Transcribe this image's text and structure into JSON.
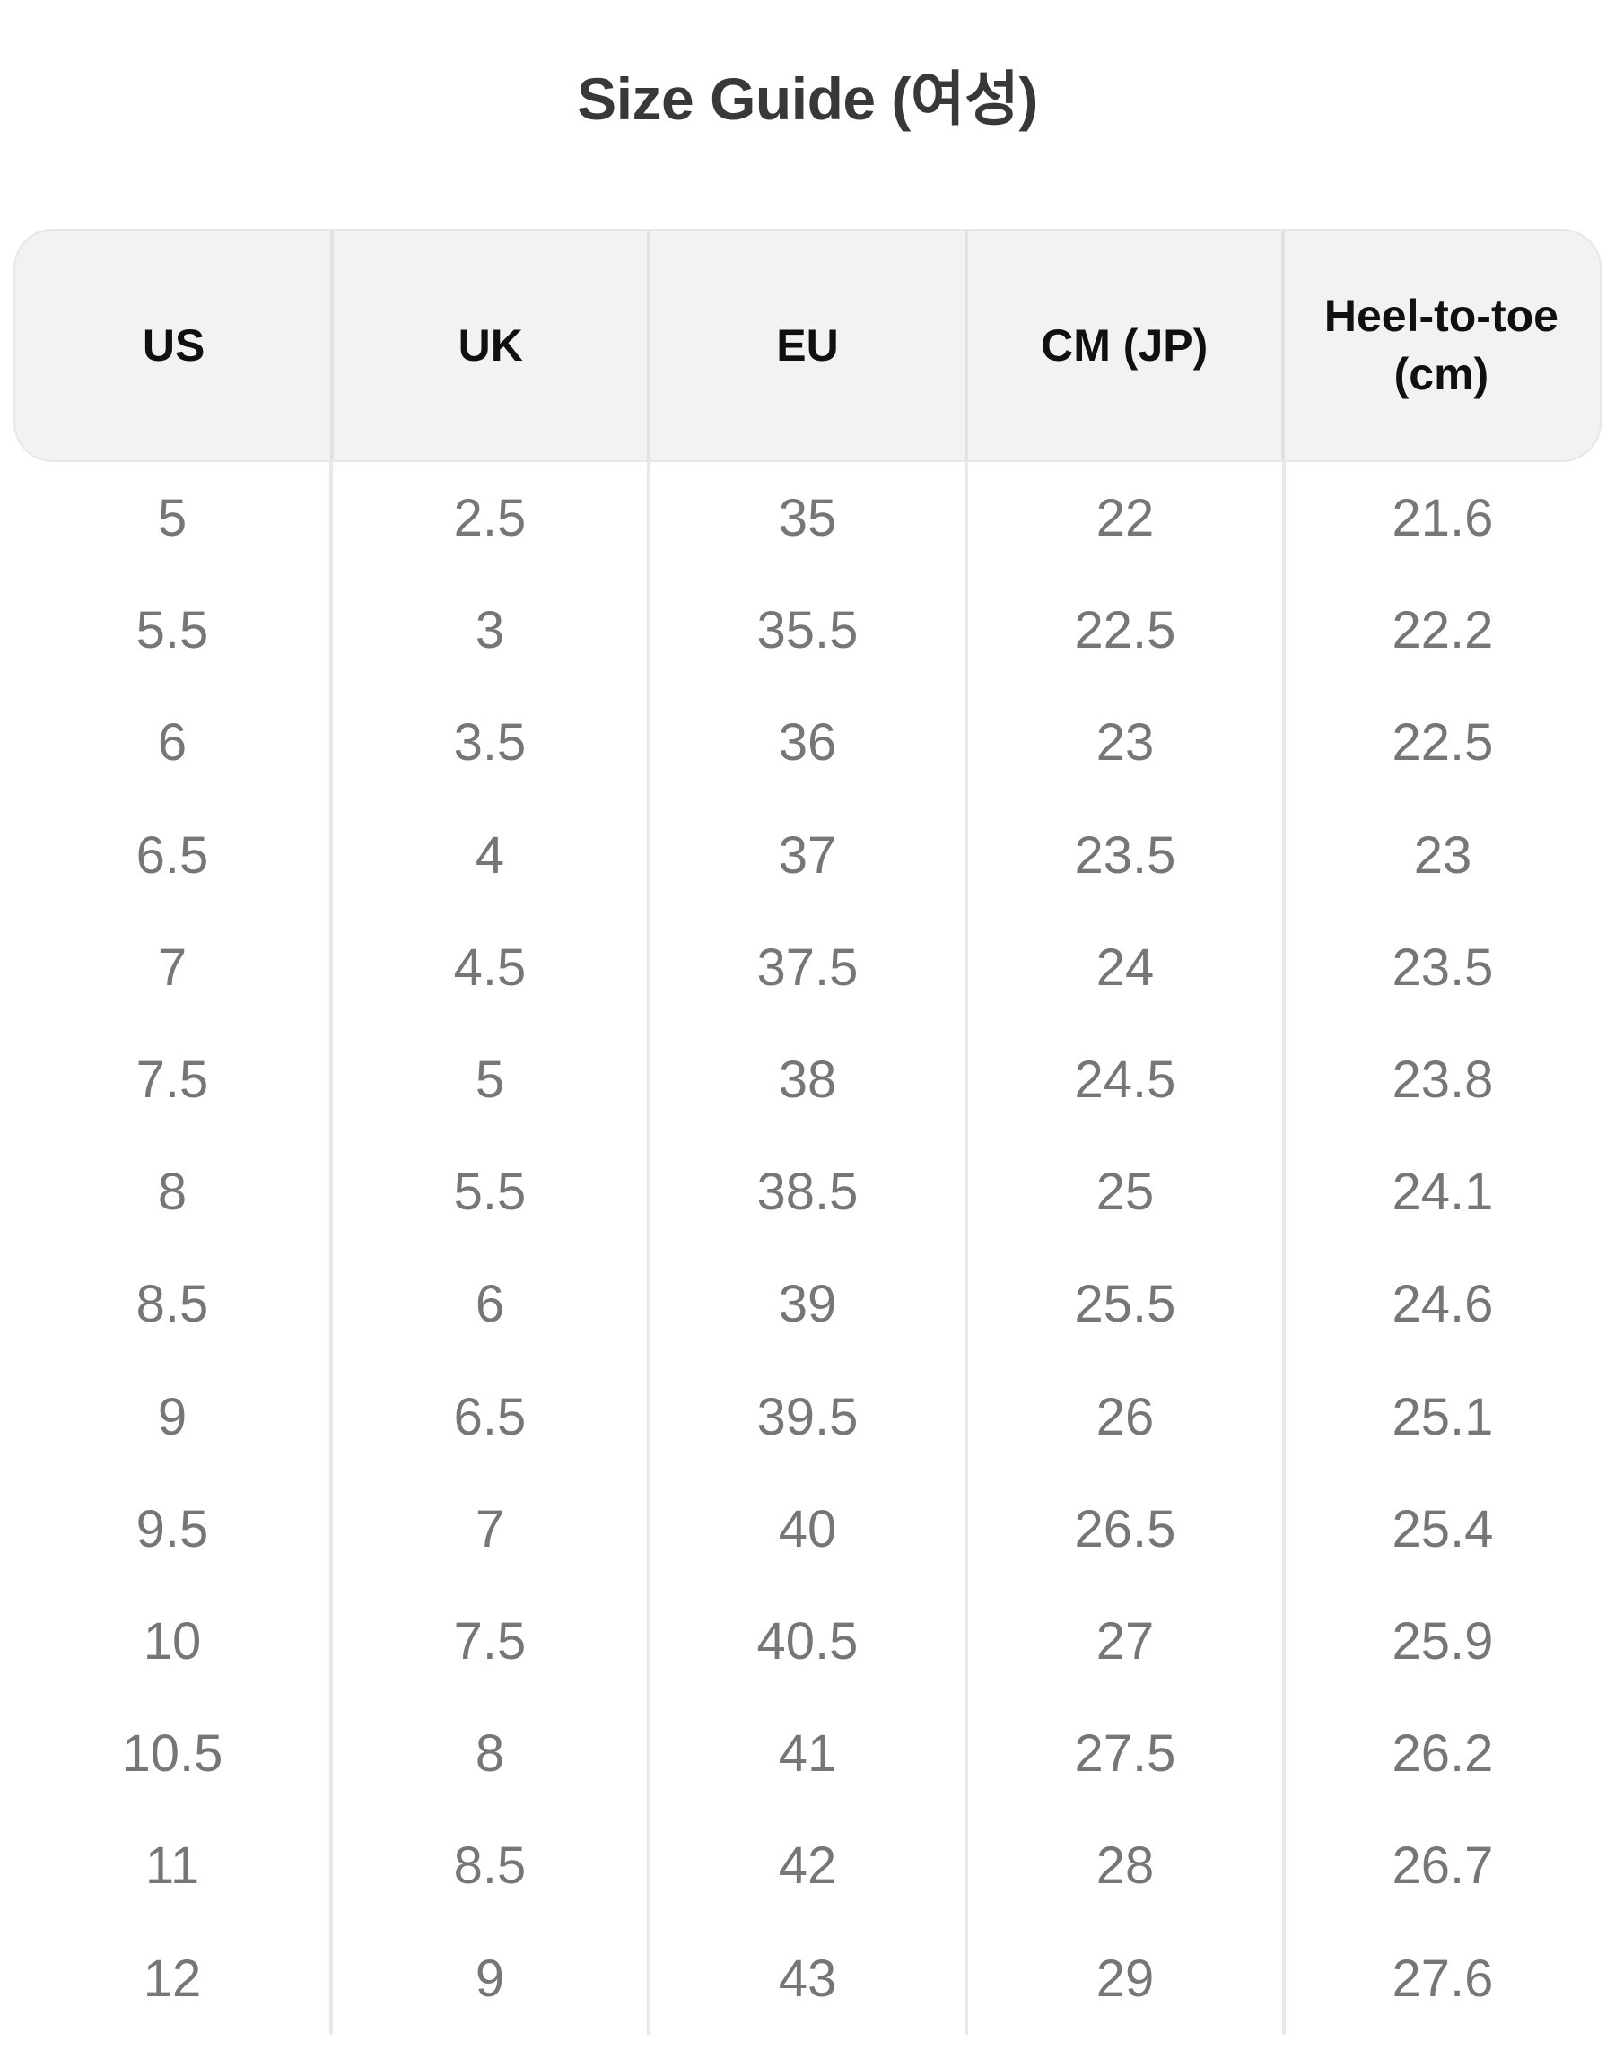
{
  "page": {
    "title": "Size Guide (여성)"
  },
  "size_table": {
    "columns": [
      "US",
      "UK",
      "EU",
      "CM (JP)",
      "Heel-to-toe (cm)"
    ],
    "rows": [
      [
        "5",
        "2.5",
        "35",
        "22",
        "21.6"
      ],
      [
        "5.5",
        "3",
        "35.5",
        "22.5",
        "22.2"
      ],
      [
        "6",
        "3.5",
        "36",
        "23",
        "22.5"
      ],
      [
        "6.5",
        "4",
        "37",
        "23.5",
        "23"
      ],
      [
        "7",
        "4.5",
        "37.5",
        "24",
        "23.5"
      ],
      [
        "7.5",
        "5",
        "38",
        "24.5",
        "23.8"
      ],
      [
        "8",
        "5.5",
        "38.5",
        "25",
        "24.1"
      ],
      [
        "8.5",
        "6",
        "39",
        "25.5",
        "24.6"
      ],
      [
        "9",
        "6.5",
        "39.5",
        "26",
        "25.1"
      ],
      [
        "9.5",
        "7",
        "40",
        "26.5",
        "25.4"
      ],
      [
        "10",
        "7.5",
        "40.5",
        "27",
        "25.9"
      ],
      [
        "10.5",
        "8",
        "41",
        "27.5",
        "26.2"
      ],
      [
        "11",
        "8.5",
        "42",
        "28",
        "26.7"
      ],
      [
        "12",
        "9",
        "43",
        "29",
        "27.6"
      ]
    ]
  },
  "colors": {
    "title_text": "#383838",
    "header_bg": "#f2f2f2",
    "header_border": "#e7e7e7",
    "header_text": "#101010",
    "header_divider": "#e2e2e2",
    "body_divider": "#e9e9e9",
    "body_text": "#767676",
    "page_bg": "#ffffff"
  }
}
